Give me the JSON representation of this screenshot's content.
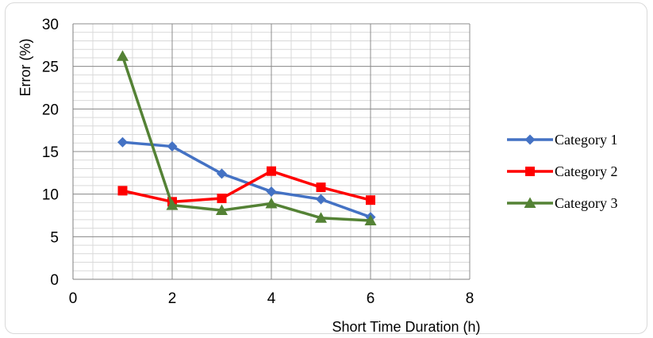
{
  "chart_data": {
    "type": "line",
    "xlabel": "Short Time Duration (h)",
    "ylabel": "Error (%)",
    "xlim": [
      0,
      8
    ],
    "ylim": [
      0,
      30
    ],
    "xticks": [
      "0",
      "2",
      "4",
      "6",
      "8"
    ],
    "yticks": [
      "0",
      "5",
      "10",
      "15",
      "20",
      "25",
      "30"
    ],
    "grid": true,
    "legend_position": "right",
    "x": [
      1,
      2,
      3,
      4,
      5,
      6
    ],
    "series": [
      {
        "name": "Category 1",
        "color": "#4472C4",
        "marker": "diamond",
        "values": [
          16.1,
          15.6,
          12.4,
          10.3,
          9.4,
          7.3
        ]
      },
      {
        "name": "Category 2",
        "color": "#FF0000",
        "marker": "square",
        "values": [
          10.4,
          9.1,
          9.5,
          12.7,
          10.8,
          9.3
        ]
      },
      {
        "name": "Category 3",
        "color": "#548235",
        "marker": "triangle",
        "values": [
          26.2,
          8.7,
          8.1,
          8.9,
          7.2,
          6.9
        ]
      }
    ]
  }
}
